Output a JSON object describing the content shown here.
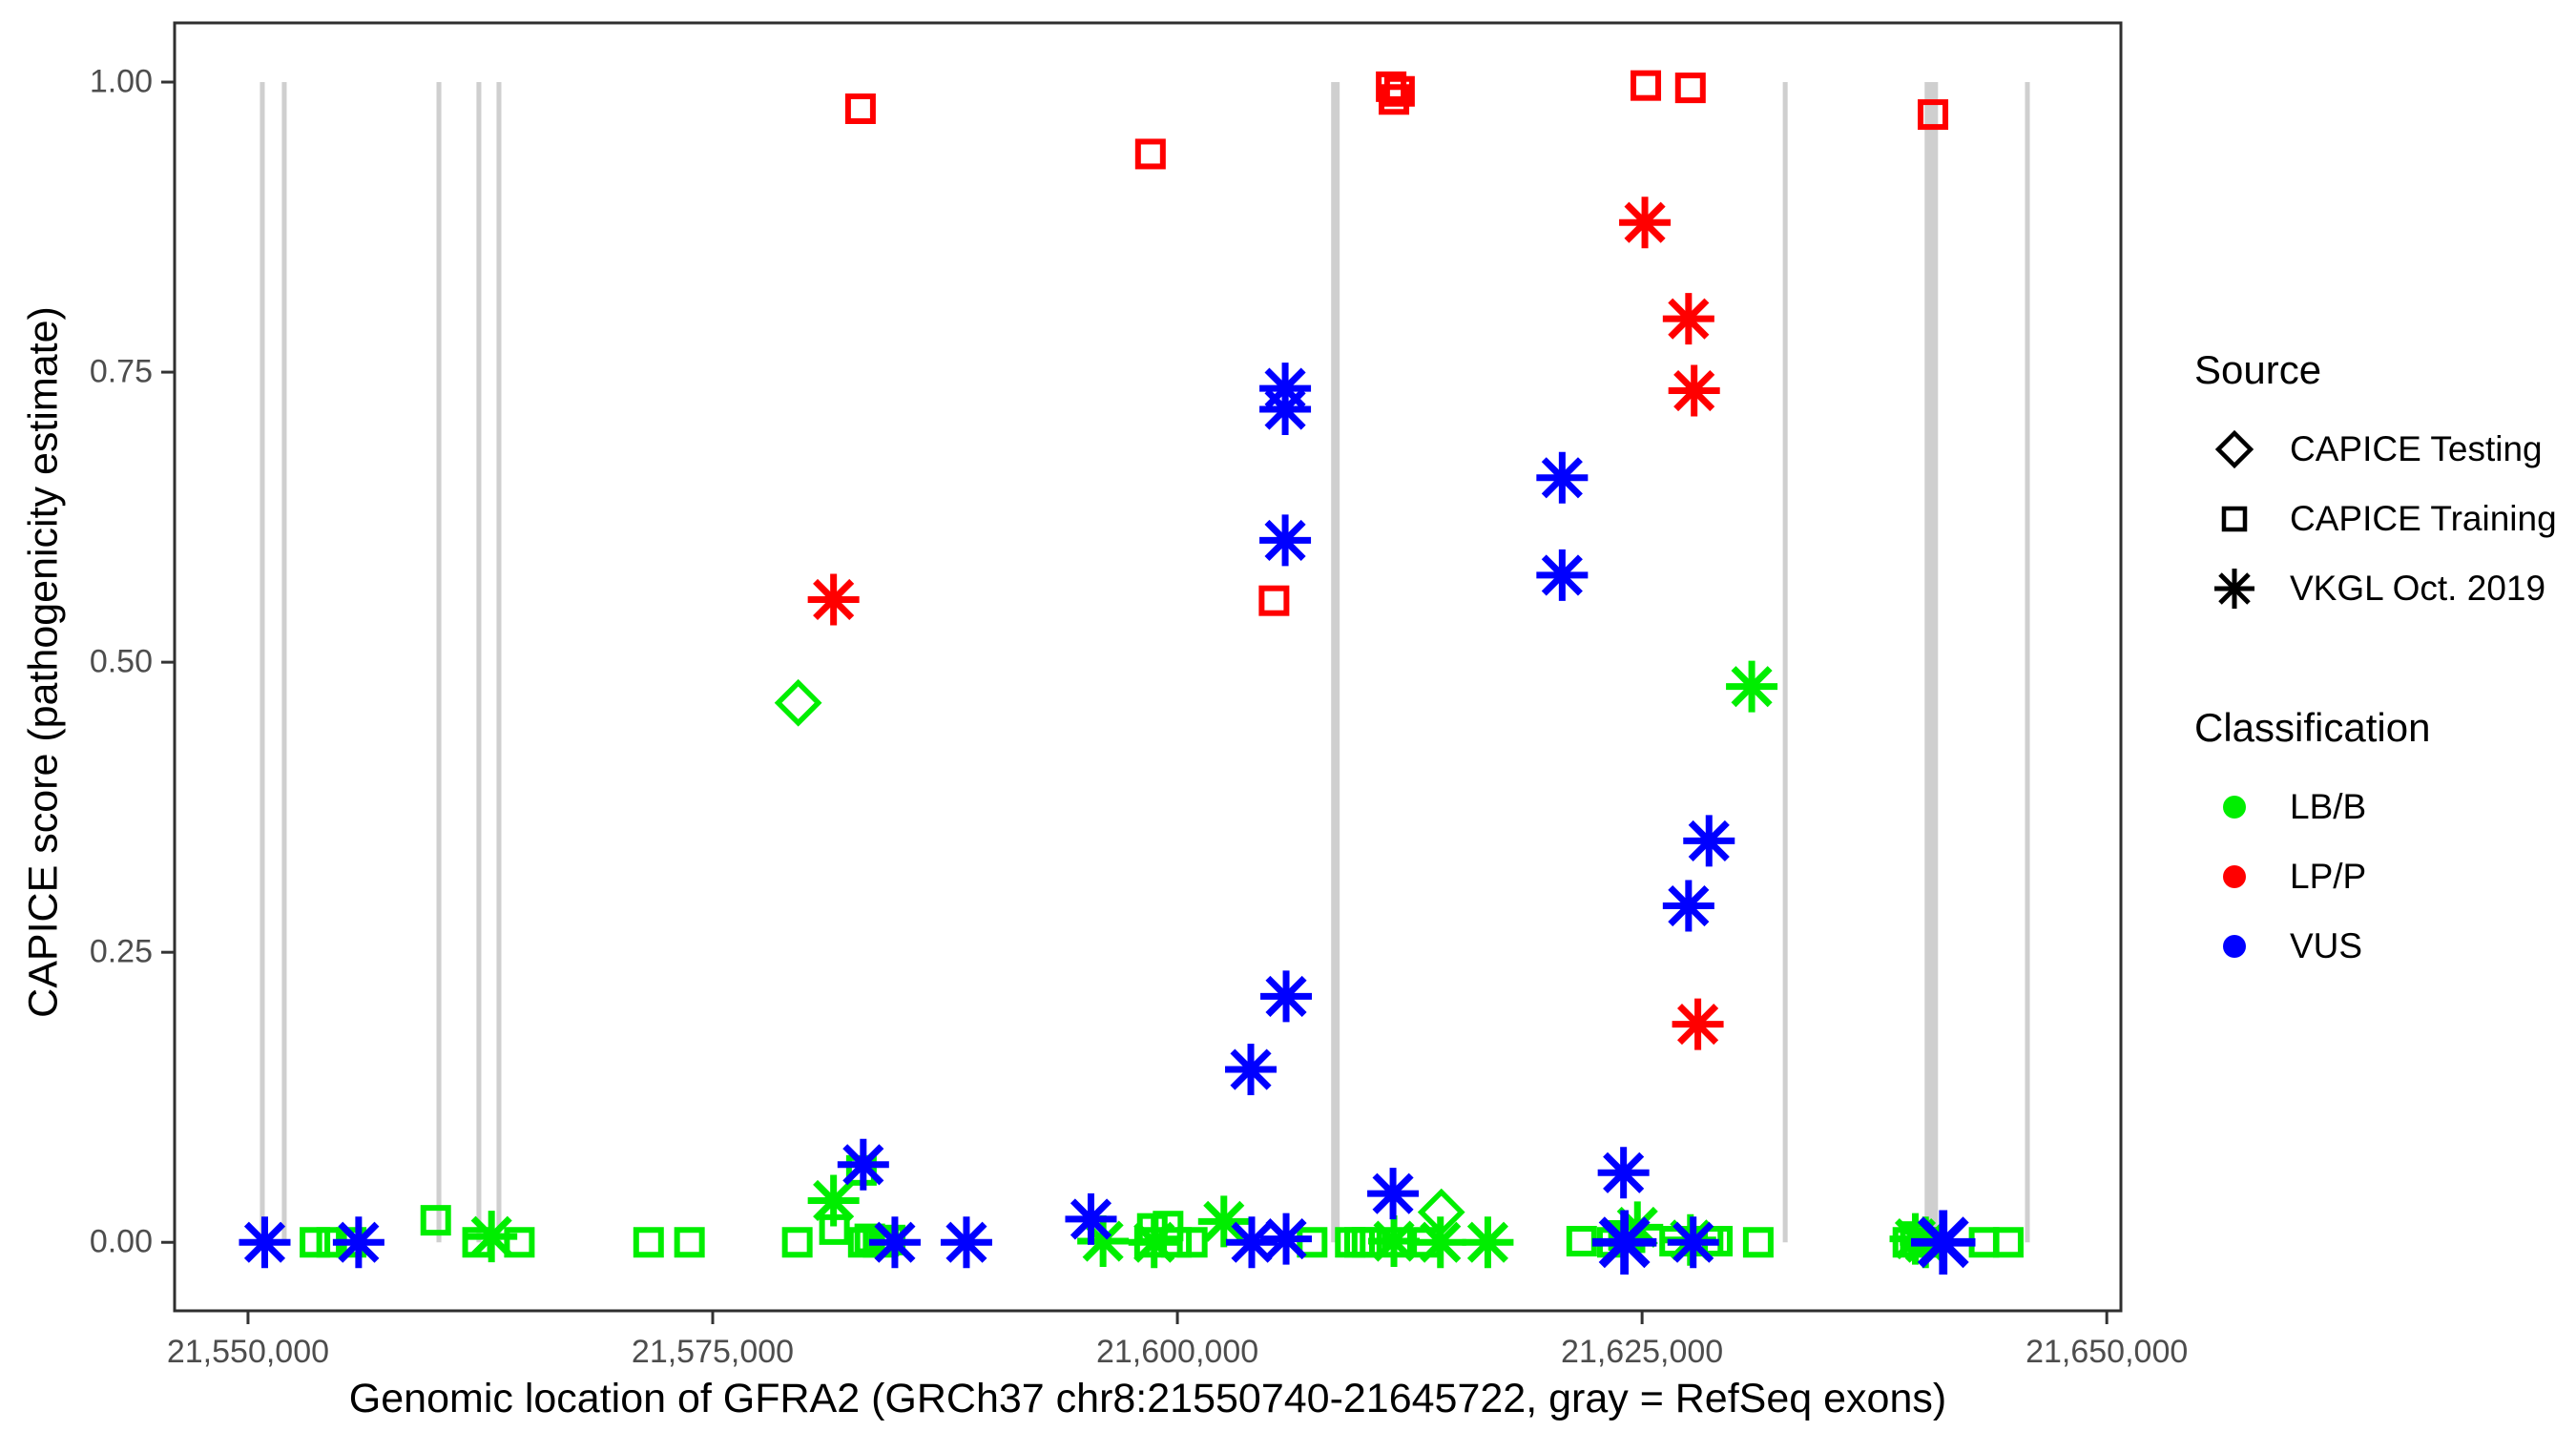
{
  "chart_data": {
    "type": "scatter",
    "xlabel": "Genomic location of GFRA2 (GRCh37 chr8:21550740-21645722, gray = RefSeq exons)",
    "ylabel": "CAPICE score (pathogenicity estimate)",
    "x_ticks": {
      "values": [
        21550000,
        21575000,
        21600000,
        21625000,
        21650000
      ],
      "labels": [
        "21,550,000",
        "21,575,000",
        "21,600,000",
        "21,625,000",
        "21,650,000"
      ]
    },
    "y_ticks": {
      "values": [
        0.0,
        0.25,
        0.5,
        0.75,
        1.0
      ],
      "labels": [
        "0.00",
        "0.25",
        "0.50",
        "0.75",
        "1.00"
      ]
    },
    "xlim": [
      21546050,
      21650760
    ],
    "ylim": [
      -0.059,
      1.051
    ],
    "grid": "off",
    "exon_color": "#CFCFCF",
    "exons": [
      [
        21550640,
        21550900
      ],
      [
        21551820,
        21552080
      ],
      [
        21560140,
        21560400
      ],
      [
        21562290,
        21562550
      ],
      [
        21563370,
        21563630
      ],
      [
        21608270,
        21608730
      ],
      [
        21632570,
        21632830
      ],
      [
        21640200,
        21640920
      ],
      [
        21645600,
        21645860
      ]
    ],
    "series": [
      {
        "source": "CAPICE Testing",
        "classification": "LB/B",
        "shape": "diamond",
        "color": "#00EE00",
        "points": [
          [
            21579600,
            0.465
          ],
          [
            21614200,
            0.026
          ]
        ]
      },
      {
        "source": "CAPICE Training",
        "classification": "LB/B",
        "shape": "square",
        "color": "#00EE00",
        "points": [
          [
            21553600,
            0.0
          ],
          [
            21554500,
            0.0
          ],
          [
            21555550,
            0.0
          ],
          [
            21560100,
            0.019
          ],
          [
            21562350,
            0.0
          ],
          [
            21564600,
            0.0
          ],
          [
            21571550,
            0.0
          ],
          [
            21573750,
            0.0
          ],
          [
            21579550,
            0.0
          ],
          [
            21581550,
            0.011
          ],
          [
            21583000,
            0.062
          ],
          [
            21583100,
            0.0
          ],
          [
            21583450,
            0.003
          ],
          [
            21583900,
            0.0
          ],
          [
            21584200,
            0.001
          ],
          [
            21584550,
            0.002
          ],
          [
            21598500,
            0.0
          ],
          [
            21598650,
            0.012
          ],
          [
            21599500,
            0.014
          ],
          [
            21599950,
            0.0
          ],
          [
            21600800,
            0.0
          ],
          [
            21607250,
            0.0
          ],
          [
            21609300,
            0.0
          ],
          [
            21609800,
            0.0
          ],
          [
            21610200,
            0.0
          ],
          [
            21611850,
            0.0
          ],
          [
            21613400,
            0.0
          ],
          [
            21621750,
            0.001
          ],
          [
            21623400,
            0.0
          ],
          [
            21624000,
            0.006
          ],
          [
            21624350,
            0.004
          ],
          [
            21626750,
            0.001
          ],
          [
            21628550,
            0.001
          ],
          [
            21629050,
            0.001
          ],
          [
            21631250,
            0.0
          ],
          [
            21639300,
            0.0
          ],
          [
            21639700,
            0.005
          ],
          [
            21640150,
            0.0
          ],
          [
            21643400,
            0.0
          ],
          [
            21644700,
            0.0
          ]
        ]
      },
      {
        "source": "CAPICE Training",
        "classification": "LP/P",
        "shape": "square",
        "color": "#FF0000",
        "points": [
          [
            21582950,
            0.977
          ],
          [
            21598550,
            0.938
          ],
          [
            21611500,
            0.996
          ],
          [
            21611950,
            0.992
          ],
          [
            21611650,
            0.985
          ],
          [
            21625200,
            0.997
          ],
          [
            21627600,
            0.995
          ],
          [
            21640650,
            0.972
          ],
          [
            21605200,
            0.553
          ]
        ]
      },
      {
        "source": "VKGL Oct. 2019",
        "classification": "LB/B",
        "shape": "asterisk",
        "color": "#00EE00",
        "points": [
          [
            21563100,
            0.005
          ],
          [
            21581500,
            0.036
          ],
          [
            21596000,
            0.001
          ],
          [
            21598750,
            0.0
          ],
          [
            21602500,
            0.018
          ],
          [
            21611650,
            0.001
          ],
          [
            21614150,
            0.0
          ],
          [
            21616700,
            0.0
          ],
          [
            21624750,
            0.013
          ],
          [
            21627600,
            0.002
          ],
          [
            21630900,
            0.479
          ],
          [
            21639700,
            0.003
          ],
          [
            21640250,
            0.0
          ]
        ]
      },
      {
        "source": "VKGL Oct. 2019",
        "classification": "LP/P",
        "shape": "asterisk",
        "color": "#FF0000",
        "points": [
          [
            21581500,
            0.554
          ],
          [
            21625150,
            0.879
          ],
          [
            21627500,
            0.796
          ],
          [
            21627800,
            0.734
          ],
          [
            21628000,
            0.188
          ]
        ]
      },
      {
        "source": "VKGL Oct. 2019",
        "classification": "VUS",
        "shape": "asterisk",
        "color": "#0000FF",
        "points": [
          [
            21550900,
            0.0
          ],
          [
            21555950,
            0.0
          ],
          [
            21583100,
            0.067
          ],
          [
            21584800,
            0.0
          ],
          [
            21588650,
            0.0
          ],
          [
            21595350,
            0.02
          ],
          [
            21604000,
            0.0
          ],
          [
            21605850,
            0.003
          ],
          [
            21605800,
            0.736
          ],
          [
            21605800,
            0.718
          ],
          [
            21605800,
            0.605
          ],
          [
            21605850,
            0.212
          ],
          [
            21603950,
            0.149
          ],
          [
            21611600,
            0.042
          ],
          [
            21620700,
            0.659
          ],
          [
            21620700,
            0.575
          ],
          [
            21624000,
            0.06
          ],
          [
            21624050,
            0.0,
            1.25
          ],
          [
            21627750,
            0.0
          ],
          [
            21628600,
            0.346
          ],
          [
            21627500,
            0.29
          ],
          [
            21641200,
            0.0,
            1.25
          ]
        ]
      }
    ],
    "legend": {
      "source": {
        "title": "Source",
        "items": [
          {
            "label": "CAPICE Testing",
            "shape": "diamond"
          },
          {
            "label": "CAPICE Training",
            "shape": "square"
          },
          {
            "label": "VKGL Oct. 2019",
            "shape": "asterisk"
          }
        ]
      },
      "classification": {
        "title": "Classification",
        "items": [
          {
            "label": "LB/B",
            "color": "#00EE00"
          },
          {
            "label": "LP/P",
            "color": "#FF0000"
          },
          {
            "label": "VUS",
            "color": "#0000FF"
          }
        ]
      }
    }
  }
}
